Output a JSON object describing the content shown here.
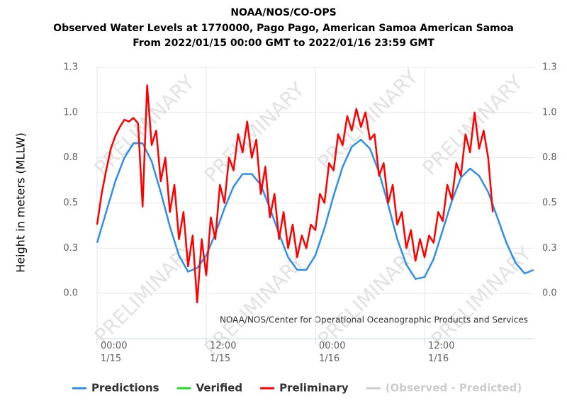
{
  "chart_data": {
    "type": "line",
    "title": "NOAA/NOS/CO-OPS",
    "subtitle": [
      "Observed Water Levels at 1770000, Pago Pago, American Samoa American Samoa",
      "From 2022/01/15 00:00 GMT to 2022/01/16 23:59 GMT"
    ],
    "ylabel": "Height in meters (MLLW)",
    "credits": "NOAA/NOS/Center for Operational Oceanographic Products and Services",
    "watermark": "PRELIMINARY",
    "xlim": [
      0,
      48
    ],
    "xticks": [
      {
        "value": 0,
        "label": "00:00\n1/15"
      },
      {
        "value": 12,
        "label": "12:00\n1/15"
      },
      {
        "value": 24,
        "label": "00:00\n1/16"
      },
      {
        "value": 36,
        "label": "12:00\n1/16"
      }
    ],
    "ylim": [
      -0.25,
      1.25
    ],
    "yticks": [
      {
        "value": 0,
        "label": "0.0"
      },
      {
        "value": 0.25,
        "label": "0.3"
      },
      {
        "value": 0.5,
        "label": "0.5"
      },
      {
        "value": 0.75,
        "label": "0.8"
      },
      {
        "value": 1,
        "label": "1.0"
      },
      {
        "value": 1.25,
        "label": "1.3"
      }
    ],
    "y2lim": [
      -0.25,
      1.25
    ],
    "y2ticks": [
      {
        "value": 0,
        "label": "0.0"
      },
      {
        "value": 0.25,
        "label": "0.3"
      },
      {
        "value": 0.5,
        "label": "0.5"
      },
      {
        "value": 0.75,
        "label": "0.8"
      },
      {
        "value": 1,
        "label": "1.0"
      },
      {
        "value": 1.25,
        "label": "1.3"
      }
    ],
    "series": [
      {
        "name": "Predictions",
        "color": "#2f8fe8",
        "visible": true,
        "x": [
          0,
          1,
          2,
          3,
          4,
          5,
          6,
          7,
          8,
          9,
          10,
          11,
          12,
          13,
          14,
          15,
          16,
          17,
          18,
          19,
          20,
          21,
          22,
          23,
          24,
          25,
          26,
          27,
          28,
          29,
          30,
          31,
          32,
          33,
          34,
          35,
          36,
          37,
          38,
          39,
          40,
          41,
          42,
          43,
          44,
          45,
          46,
          47,
          48
        ],
        "values": [
          0.28,
          0.45,
          0.62,
          0.75,
          0.83,
          0.83,
          0.73,
          0.56,
          0.37,
          0.21,
          0.12,
          0.14,
          0.21,
          0.33,
          0.47,
          0.59,
          0.66,
          0.66,
          0.6,
          0.47,
          0.33,
          0.2,
          0.13,
          0.13,
          0.21,
          0.36,
          0.54,
          0.7,
          0.81,
          0.85,
          0.8,
          0.67,
          0.49,
          0.3,
          0.16,
          0.08,
          0.09,
          0.19,
          0.35,
          0.51,
          0.64,
          0.69,
          0.65,
          0.56,
          0.42,
          0.28,
          0.17,
          0.11,
          0.13
        ]
      },
      {
        "name": "Verified",
        "color": "#22dd22",
        "visible": true,
        "x": [],
        "values": []
      },
      {
        "name": "Preliminary",
        "color": "#ff0000",
        "visible": true,
        "x": [
          0,
          0.5,
          1,
          1.5,
          2,
          2.5,
          3,
          3.5,
          4,
          4.5,
          5,
          5.5,
          6,
          6.5,
          7,
          7.5,
          8,
          8.5,
          9,
          9.5,
          10,
          10.5,
          11,
          11.5,
          12,
          12.5,
          13,
          13.5,
          14,
          14.5,
          15,
          15.5,
          16,
          16.5,
          17,
          17.5,
          18,
          18.5,
          19,
          19.5,
          20,
          20.5,
          21,
          21.5,
          22,
          22.5,
          23,
          23.5,
          24,
          24.5,
          25,
          25.5,
          26,
          26.5,
          27,
          27.5,
          28,
          28.5,
          29,
          29.5,
          30,
          30.5,
          31,
          31.5,
          32,
          32.5,
          33,
          33.5,
          34,
          34.5,
          35,
          35.5,
          36,
          36.5,
          37,
          37.5,
          38,
          38.5,
          39,
          39.5,
          40,
          40.5,
          41,
          41.5,
          42,
          42.5,
          43,
          43.5
        ],
        "values": [
          0.38,
          0.55,
          0.68,
          0.8,
          0.87,
          0.92,
          0.96,
          0.95,
          0.97,
          0.94,
          0.48,
          1.15,
          0.82,
          0.9,
          0.62,
          0.75,
          0.45,
          0.6,
          0.3,
          0.45,
          0.15,
          0.32,
          -0.05,
          0.3,
          0.1,
          0.42,
          0.3,
          0.6,
          0.5,
          0.75,
          0.68,
          0.88,
          0.78,
          0.95,
          0.75,
          0.85,
          0.55,
          0.7,
          0.42,
          0.55,
          0.3,
          0.45,
          0.25,
          0.38,
          0.2,
          0.32,
          0.25,
          0.38,
          0.35,
          0.55,
          0.5,
          0.72,
          0.68,
          0.88,
          0.82,
          0.98,
          0.9,
          1.02,
          0.92,
          1.0,
          0.85,
          0.88,
          0.65,
          0.72,
          0.5,
          0.6,
          0.38,
          0.45,
          0.25,
          0.35,
          0.18,
          0.3,
          0.2,
          0.32,
          0.28,
          0.45,
          0.4,
          0.6,
          0.52,
          0.72,
          0.65,
          0.88,
          0.78,
          1.0,
          0.8,
          0.9,
          0.75,
          0.45
        ]
      },
      {
        "name": "(Observed - Predicted)",
        "color": "#cccccc",
        "visible": false,
        "x": [],
        "values": []
      }
    ]
  }
}
